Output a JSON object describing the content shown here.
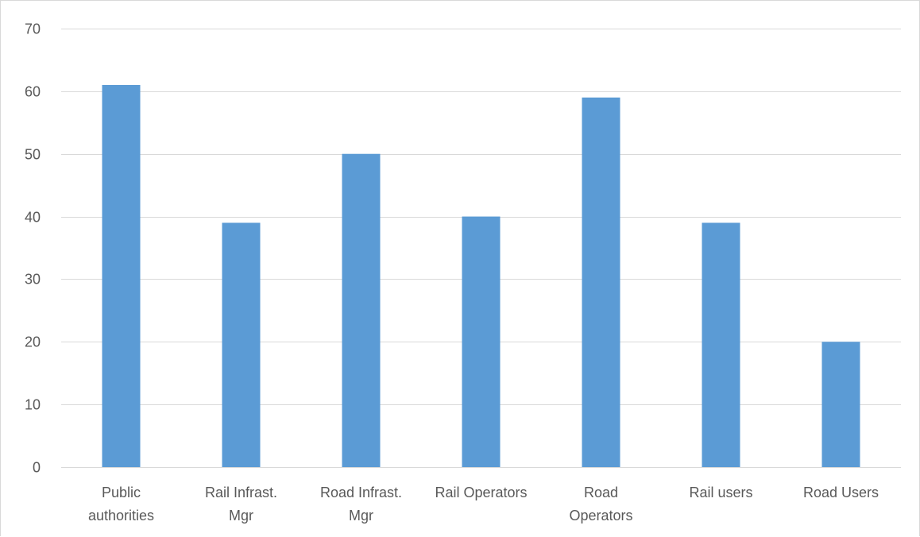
{
  "chart_data": {
    "type": "bar",
    "title": "",
    "xlabel": "",
    "ylabel": "",
    "categories": [
      [
        "Public",
        "authorities"
      ],
      [
        "Rail Infrast.",
        "Mgr"
      ],
      [
        "Road Infrast.",
        "Mgr"
      ],
      [
        "Rail Operators"
      ],
      [
        "Road",
        "Operators"
      ],
      [
        "Rail users"
      ],
      [
        "Road Users"
      ]
    ],
    "values": [
      61,
      39,
      50,
      40,
      59,
      39,
      20
    ],
    "ylim": [
      0,
      70
    ],
    "yticks": [
      "0",
      "10",
      "20",
      "30",
      "40",
      "50",
      "60",
      "70"
    ],
    "grid": true,
    "legend": "none",
    "bar_color": "#5b9bd5",
    "grid_color": "#d9d9d9",
    "text_color": "#595959"
  }
}
